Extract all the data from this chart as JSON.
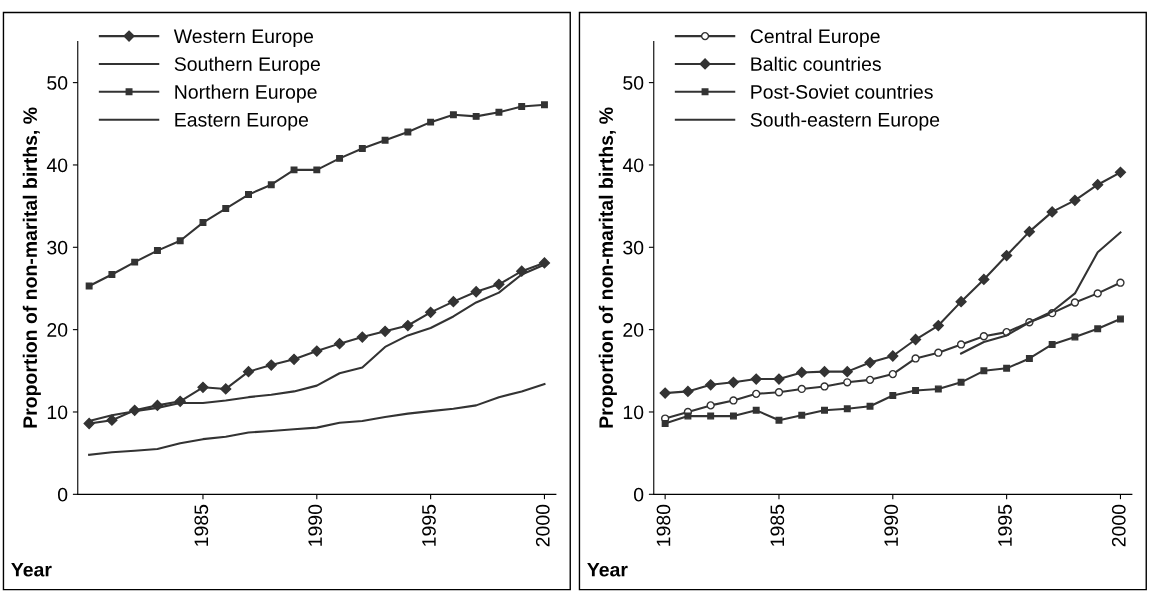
{
  "chart_data": [
    {
      "type": "line",
      "xlabel": "Year",
      "ylabel": "Proportion of non-marital births, %",
      "x": [
        1980,
        1981,
        1982,
        1983,
        1984,
        1985,
        1986,
        1987,
        1988,
        1989,
        1990,
        1991,
        1992,
        1993,
        1994,
        1995,
        1996,
        1997,
        1998,
        1999,
        2000
      ],
      "xlim": [
        1979.5,
        2000.5
      ],
      "xticks": [
        1985,
        1990,
        1995,
        2000
      ],
      "ylim": [
        0,
        55
      ],
      "yticks": [
        0,
        10,
        20,
        30,
        40,
        50
      ],
      "legend": "top left",
      "grid": false,
      "series": [
        {
          "name": "Western Europe",
          "color": "#333333",
          "marker": "diamond",
          "values": [
            8.6,
            9.0,
            10.2,
            10.8,
            11.3,
            13.0,
            12.8,
            14.9,
            15.7,
            16.4,
            17.4,
            18.3,
            19.1,
            19.8,
            20.5,
            22.1,
            23.4,
            24.6,
            25.5,
            27.1,
            28.1
          ]
        },
        {
          "name": "Southern Europe",
          "color": "#333333",
          "marker": "none",
          "values": [
            4.8,
            5.1,
            5.3,
            5.5,
            6.2,
            6.7,
            7.0,
            7.5,
            7.7,
            7.9,
            8.1,
            8.7,
            8.9,
            9.4,
            9.8,
            10.1,
            10.4,
            10.8,
            11.8,
            12.5,
            13.4
          ]
        },
        {
          "name": "Northern Europe",
          "color": "#333333",
          "marker": "square",
          "values": [
            25.3,
            26.7,
            28.2,
            29.6,
            30.8,
            33.0,
            34.7,
            36.4,
            37.6,
            39.4,
            39.4,
            40.8,
            42.0,
            43.0,
            44.0,
            45.2,
            46.1,
            45.9,
            46.4,
            47.1,
            47.3
          ]
        },
        {
          "name": "Eastern Europe",
          "color": "#333333",
          "marker": "none",
          "values": [
            8.9,
            9.6,
            10.1,
            10.5,
            11.1,
            11.1,
            11.4,
            11.8,
            12.1,
            12.5,
            13.2,
            14.7,
            15.4,
            17.9,
            19.3,
            20.2,
            21.6,
            23.3,
            24.5,
            26.7,
            27.9
          ]
        }
      ]
    },
    {
      "type": "line",
      "xlabel": "Year",
      "ylabel": "Proportion of non-marital births, %",
      "x": [
        1980,
        1981,
        1982,
        1983,
        1984,
        1985,
        1986,
        1987,
        1988,
        1989,
        1990,
        1991,
        1992,
        1993,
        1994,
        1995,
        1996,
        1997,
        1998,
        1999,
        2000
      ],
      "xlim": [
        1979.5,
        2000.5
      ],
      "xticks": [
        1980,
        1985,
        1990,
        1995,
        2000
      ],
      "ylim": [
        0,
        55
      ],
      "yticks": [
        0,
        10,
        20,
        30,
        40,
        50
      ],
      "legend": "top left",
      "grid": false,
      "series": [
        {
          "name": "Central Europe",
          "color": "#333333",
          "marker": "circle",
          "values": [
            9.2,
            10.0,
            10.8,
            11.4,
            12.2,
            12.4,
            12.8,
            13.1,
            13.6,
            13.9,
            14.6,
            16.5,
            17.2,
            18.2,
            19.2,
            19.7,
            20.9,
            22.0,
            23.3,
            24.4,
            25.7
          ]
        },
        {
          "name": "Baltic countries",
          "color": "#333333",
          "marker": "diamond",
          "values": [
            12.3,
            12.5,
            13.3,
            13.6,
            14.0,
            14.0,
            14.8,
            14.9,
            14.9,
            16.0,
            16.8,
            18.8,
            20.5,
            23.4,
            26.1,
            29.0,
            31.9,
            34.3,
            35.7,
            37.6,
            39.1
          ]
        },
        {
          "name": "Post-Soviet countries",
          "color": "#333333",
          "marker": "square",
          "values": [
            8.6,
            9.5,
            9.5,
            9.5,
            10.2,
            9.0,
            9.6,
            10.2,
            10.4,
            10.7,
            12.0,
            12.6,
            12.8,
            13.6,
            15.0,
            15.3,
            16.5,
            18.2,
            19.1,
            20.1,
            21.3
          ]
        },
        {
          "name": "South-eastern Europe",
          "color": "#333333",
          "marker": "none",
          "values": [
            null,
            null,
            null,
            null,
            null,
            null,
            null,
            null,
            null,
            null,
            null,
            null,
            null,
            17.1,
            18.5,
            19.3,
            20.9,
            22.2,
            24.4,
            29.4,
            31.8
          ]
        }
      ]
    }
  ]
}
